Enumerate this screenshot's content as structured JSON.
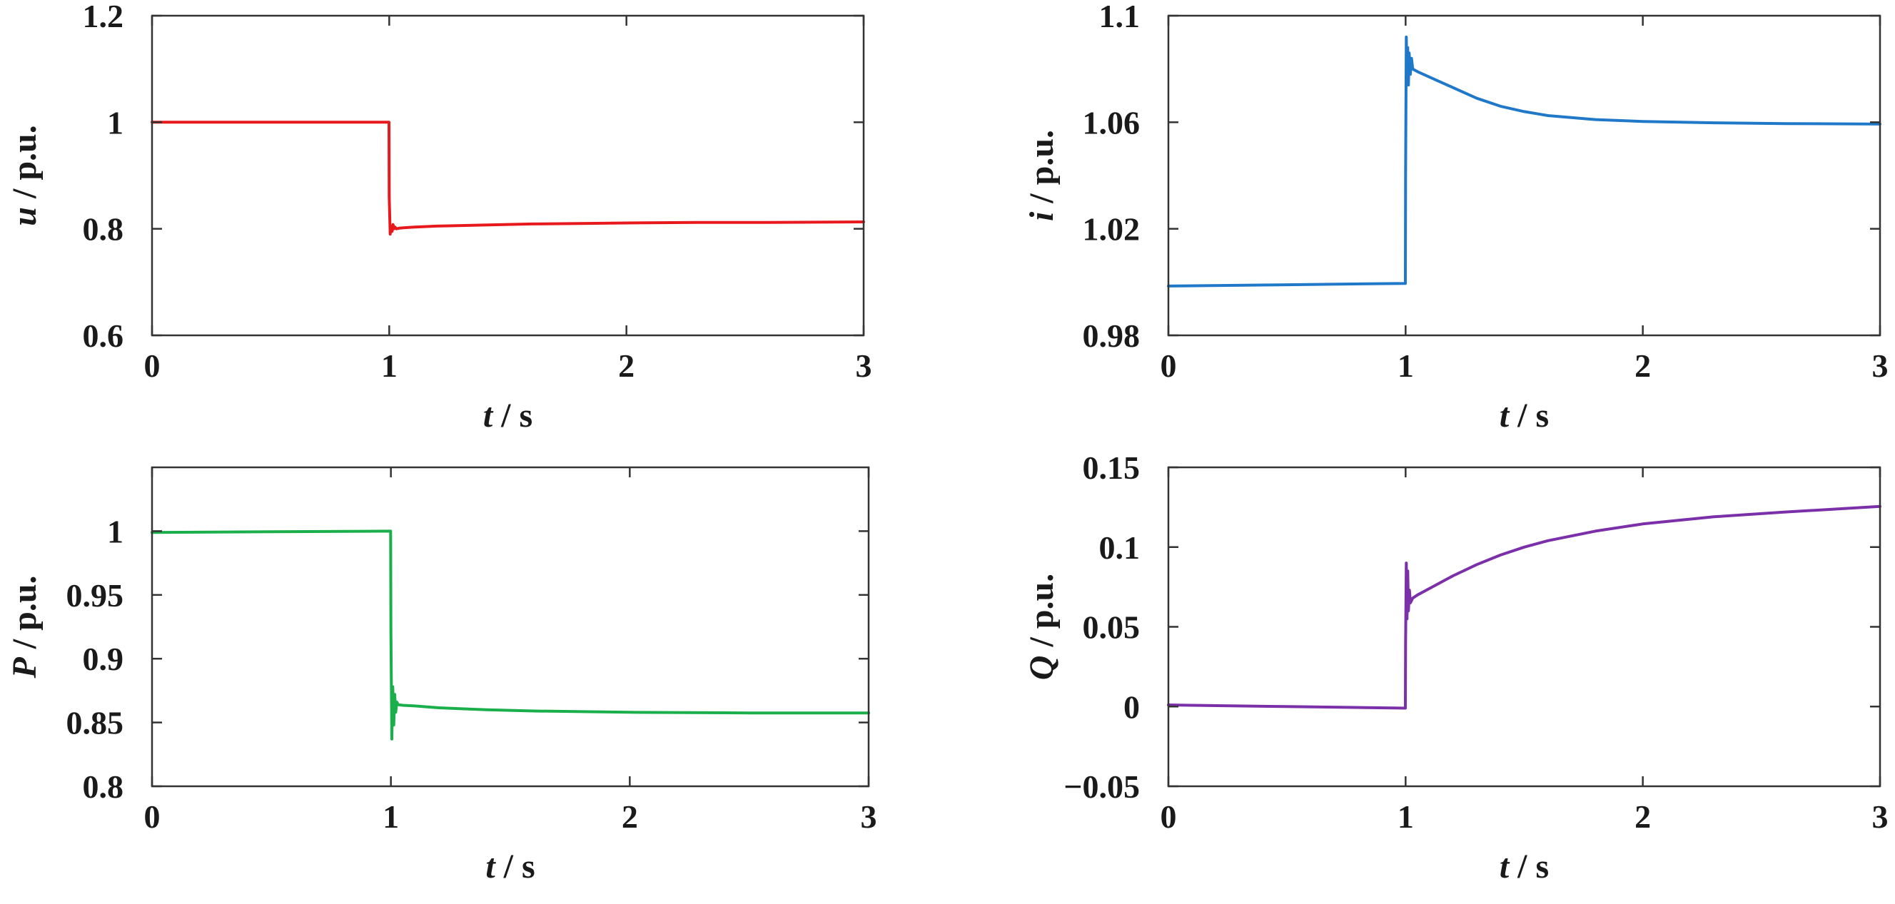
{
  "chart_data": [
    {
      "id": "voltage",
      "type": "line",
      "title": "",
      "xlabel": {
        "symbol": "t",
        "unit": " / s"
      },
      "ylabel": {
        "symbol": "u",
        "unit": " / p.u."
      },
      "xlim": [
        0,
        3
      ],
      "ylim": [
        0.6,
        1.2
      ],
      "xticks": [
        0,
        1,
        2,
        3
      ],
      "xtick_labels": [
        "0",
        "1",
        "2",
        "3"
      ],
      "yticks": [
        0.6,
        0.8,
        1.0,
        1.2
      ],
      "ytick_labels": [
        "0.6",
        "0.8",
        "1",
        "1.2"
      ],
      "grid": false,
      "series": [
        {
          "color": "#e8191d",
          "x": [
            0,
            0.02,
            0.04,
            0.6,
            0.999,
            1.0,
            1.004,
            1.008,
            1.012,
            1.016,
            1.02,
            1.025,
            1.03,
            1.04,
            1.06,
            1.1,
            1.2,
            1.4,
            1.6,
            1.8,
            2.0,
            2.3,
            2.6,
            3.0
          ],
          "y": [
            1.0,
            1.0,
            1.0,
            1.0,
            1.0,
            0.86,
            0.79,
            0.805,
            0.795,
            0.808,
            0.8,
            0.803,
            0.8,
            0.801,
            0.802,
            0.803,
            0.805,
            0.807,
            0.809,
            0.81,
            0.811,
            0.812,
            0.812,
            0.813
          ]
        }
      ]
    },
    {
      "id": "current",
      "type": "line",
      "title": "",
      "xlabel": {
        "symbol": "t",
        "unit": " / s"
      },
      "ylabel": {
        "symbol": "i",
        "unit": " / p.u."
      },
      "xlim": [
        0,
        3
      ],
      "ylim": [
        0.98,
        1.1
      ],
      "xticks": [
        0,
        1,
        2,
        3
      ],
      "xtick_labels": [
        "0",
        "1",
        "2",
        "3"
      ],
      "yticks": [
        0.98,
        1.02,
        1.06,
        1.1
      ],
      "ytick_labels": [
        "0.98",
        "1.02",
        "1.06",
        "1.1"
      ],
      "grid": false,
      "series": [
        {
          "color": "#1f78c8",
          "x": [
            0,
            0.5,
            0.999,
            1.0,
            1.003,
            1.006,
            1.009,
            1.012,
            1.015,
            1.02,
            1.025,
            1.03,
            1.05,
            1.1,
            1.2,
            1.3,
            1.4,
            1.5,
            1.6,
            1.8,
            2.0,
            2.3,
            2.6,
            3.0
          ],
          "y": [
            0.9985,
            0.999,
            0.9995,
            1.04,
            1.092,
            1.078,
            1.088,
            1.074,
            1.086,
            1.078,
            1.084,
            1.08,
            1.079,
            1.077,
            1.073,
            1.069,
            1.066,
            1.064,
            1.0625,
            1.061,
            1.0603,
            1.0598,
            1.0595,
            1.0593
          ]
        }
      ]
    },
    {
      "id": "active-power",
      "type": "line",
      "title": "",
      "xlabel": {
        "symbol": "t",
        "unit": " / s"
      },
      "ylabel": {
        "symbol": "P",
        "unit": " / p.u."
      },
      "xlim": [
        0,
        3
      ],
      "ylim": [
        0.8,
        1.05
      ],
      "xticks": [
        0,
        1,
        2,
        3
      ],
      "xtick_labels": [
        "0",
        "1",
        "2",
        "3"
      ],
      "yticks": [
        0.8,
        0.85,
        0.9,
        0.95,
        1.0
      ],
      "ytick_labels": [
        "0.8",
        "0.85",
        "0.9",
        "0.95",
        "1"
      ],
      "grid": false,
      "series": [
        {
          "color": "#1aaf4b",
          "x": [
            0,
            0.5,
            0.999,
            1.0,
            1.004,
            1.008,
            1.012,
            1.016,
            1.02,
            1.025,
            1.03,
            1.05,
            1.1,
            1.2,
            1.4,
            1.6,
            1.8,
            2.0,
            2.5,
            3.0
          ],
          "y": [
            0.999,
            0.9995,
            1.0,
            0.92,
            0.837,
            0.878,
            0.848,
            0.872,
            0.858,
            0.866,
            0.864,
            0.8635,
            0.863,
            0.8615,
            0.86,
            0.859,
            0.8585,
            0.858,
            0.8575,
            0.8575
          ]
        }
      ]
    },
    {
      "id": "reactive-power",
      "type": "line",
      "title": "",
      "xlabel": {
        "symbol": "t",
        "unit": " / s"
      },
      "ylabel": {
        "symbol": "Q",
        "unit": " / p.u."
      },
      "xlim": [
        0,
        3
      ],
      "ylim": [
        -0.05,
        0.15
      ],
      "xticks": [
        0,
        1,
        2,
        3
      ],
      "xtick_labels": [
        "0",
        "1",
        "2",
        "3"
      ],
      "yticks": [
        -0.05,
        0,
        0.05,
        0.1,
        0.15
      ],
      "ytick_labels": [
        "−0.05",
        "0",
        "0.05",
        "0.1",
        "0.15"
      ],
      "grid": false,
      "series": [
        {
          "color": "#7b2fa8",
          "x": [
            0,
            0.5,
            0.999,
            1.0,
            1.003,
            1.006,
            1.009,
            1.012,
            1.016,
            1.02,
            1.03,
            1.05,
            1.1,
            1.2,
            1.3,
            1.4,
            1.5,
            1.6,
            1.8,
            2.0,
            2.3,
            2.6,
            3.0
          ],
          "y": [
            0.001,
            0.0,
            -0.001,
            0.04,
            0.09,
            0.055,
            0.085,
            0.06,
            0.073,
            0.065,
            0.068,
            0.07,
            0.074,
            0.082,
            0.089,
            0.095,
            0.1,
            0.104,
            0.11,
            0.1145,
            0.119,
            0.122,
            0.1255
          ]
        }
      ]
    }
  ]
}
